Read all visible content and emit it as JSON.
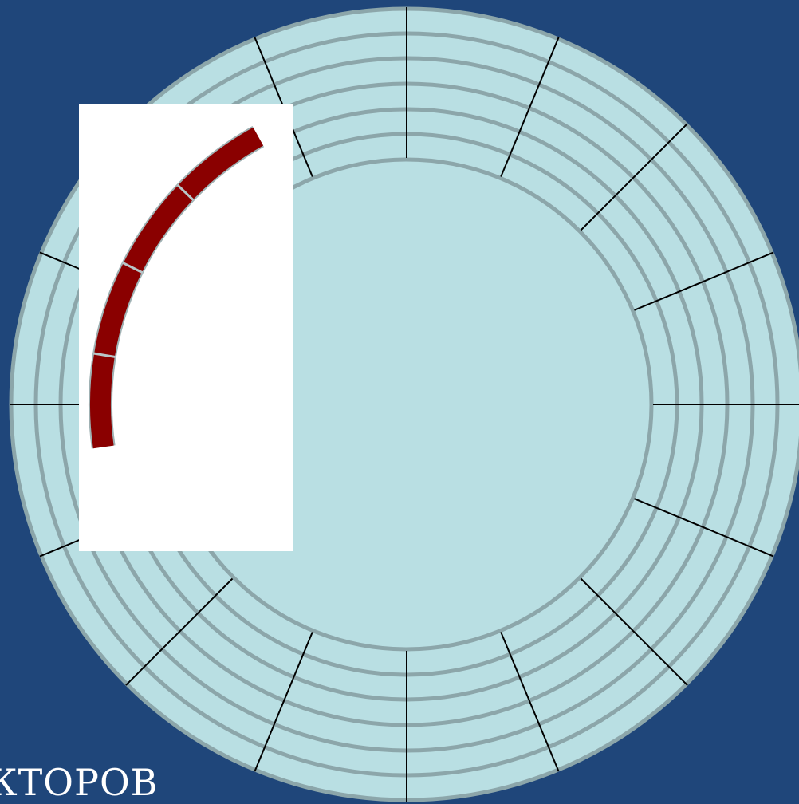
{
  "colors": {
    "background": "#1f467a",
    "platter": "#b9dfe3",
    "track_line": "#8ca6aa",
    "sector_line": "#000000",
    "highlight": "#8a0000"
  },
  "disk": {
    "track_count": 6,
    "sector_count": 16
  },
  "inset": {
    "highlighted_blocks": 4
  },
  "caption": {
    "text": "КТОРОВ"
  }
}
